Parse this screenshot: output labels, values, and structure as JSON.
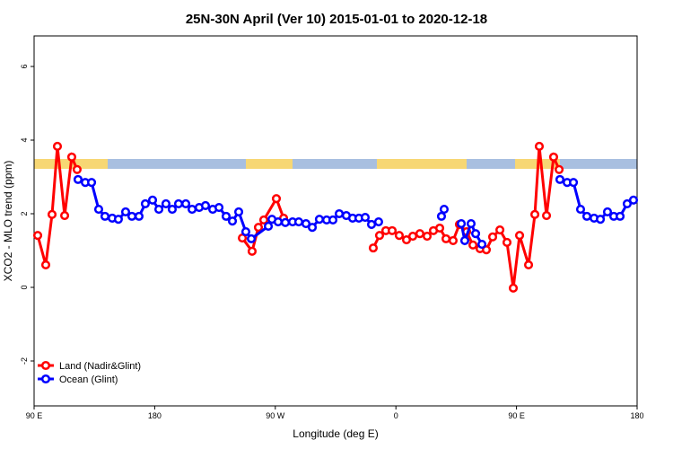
{
  "chart_data": {
    "type": "line",
    "title": "25N-30N April (Ver 10)   2015-01-01 to 2020-12-18",
    "x_label": "Longitude (deg E)",
    "y_label": "XCO2 - MLO trend (ppm)",
    "xlim": [
      90,
      540
    ],
    "ylim": [
      -3.22,
      6.83
    ],
    "xticks": [
      {
        "value": 90,
        "label": "90 E"
      },
      180,
      {
        "value": 270,
        "label": "90 W"
      },
      {
        "value": 360,
        "label": "0"
      },
      {
        "value": 450,
        "label": "90 E"
      },
      {
        "value": 540,
        "label": "180"
      }
    ],
    "yticks": [
      -2,
      0,
      2,
      4,
      6
    ],
    "legend": "bottomleft",
    "series": [
      {
        "name": "Land (Nadir&Glint)",
        "color": "#ff0000",
        "x": [
          92.7,
          98.7,
          103.4,
          107.4,
          112.8,
          118.1,
          122.1,
          null,
          245.4,
          252.7,
          257.4,
          261.4,
          270.8,
          276.2,
          null,
          343.1,
          347.8,
          352.5,
          357.2,
          362.5,
          367.9,
          372.6,
          377.9,
          383.3,
          388.0,
          392.7,
          397.4,
          402.7,
          407.4,
          412.8,
          417.5,
          422.8,
          427.5,
          432.2,
          437.6,
          442.9,
          447.6,
          452.3,
          459.0,
          463.7,
          467.0,
          472.4,
          477.7,
          481.8
        ],
        "values": [
          1.41,
          0.61,
          1.98,
          3.83,
          1.95,
          3.54,
          3.2,
          null,
          1.34,
          0.98,
          1.63,
          1.83,
          2.41,
          1.88,
          null,
          1.07,
          1.41,
          1.54,
          1.54,
          1.41,
          1.29,
          1.39,
          1.46,
          1.39,
          1.54,
          1.61,
          1.32,
          1.27,
          1.71,
          1.51,
          1.15,
          1.05,
          1.02,
          1.37,
          1.56,
          1.22,
          -0.02,
          1.41,
          0.61,
          1.98,
          3.83,
          1.95,
          3.54,
          3.2
        ]
      },
      {
        "name": "Ocean (Glint)",
        "color": "#0000ff",
        "x": [
          122.8,
          128.2,
          132.9,
          138.2,
          142.9,
          148.3,
          152.9,
          158.3,
          163.0,
          168.3,
          173.0,
          178.4,
          183.1,
          188.4,
          193.1,
          197.8,
          203.2,
          207.9,
          213.2,
          217.9,
          223.3,
          228.0,
          233.3,
          238.0,
          242.7,
          248.0,
          252.1,
          264.8,
          267.5,
          272.1,
          277.5,
          282.9,
          287.5,
          292.9,
          297.6,
          302.9,
          308.3,
          313.0,
          317.7,
          323.0,
          327.7,
          332.4,
          337.1,
          341.8,
          347.1,
          null,
          394.0,
          396.0,
          null,
          408.8,
          411.4,
          416.1,
          419.5,
          424.2,
          null,
          482.4,
          487.8,
          492.5,
          497.8,
          502.5,
          507.9,
          512.6,
          517.9,
          522.6,
          527.3,
          532.6,
          537.3
        ],
        "values": [
          2.93,
          2.85,
          2.85,
          2.12,
          1.93,
          1.88,
          1.85,
          2.05,
          1.93,
          1.93,
          2.27,
          2.37,
          2.12,
          2.27,
          2.12,
          2.27,
          2.27,
          2.12,
          2.17,
          2.22,
          2.12,
          2.17,
          1.93,
          1.8,
          2.05,
          1.51,
          1.32,
          1.66,
          1.85,
          1.78,
          1.76,
          1.78,
          1.78,
          1.73,
          1.63,
          1.85,
          1.83,
          1.83,
          2.0,
          1.95,
          1.88,
          1.88,
          1.9,
          1.71,
          1.78,
          null,
          1.93,
          2.12,
          null,
          1.73,
          1.27,
          1.73,
          1.46,
          1.17,
          null,
          2.93,
          2.85,
          2.85,
          2.12,
          1.93,
          1.88,
          1.85,
          2.05,
          1.93,
          1.93,
          2.27,
          2.37
        ]
      }
    ]
  }
}
